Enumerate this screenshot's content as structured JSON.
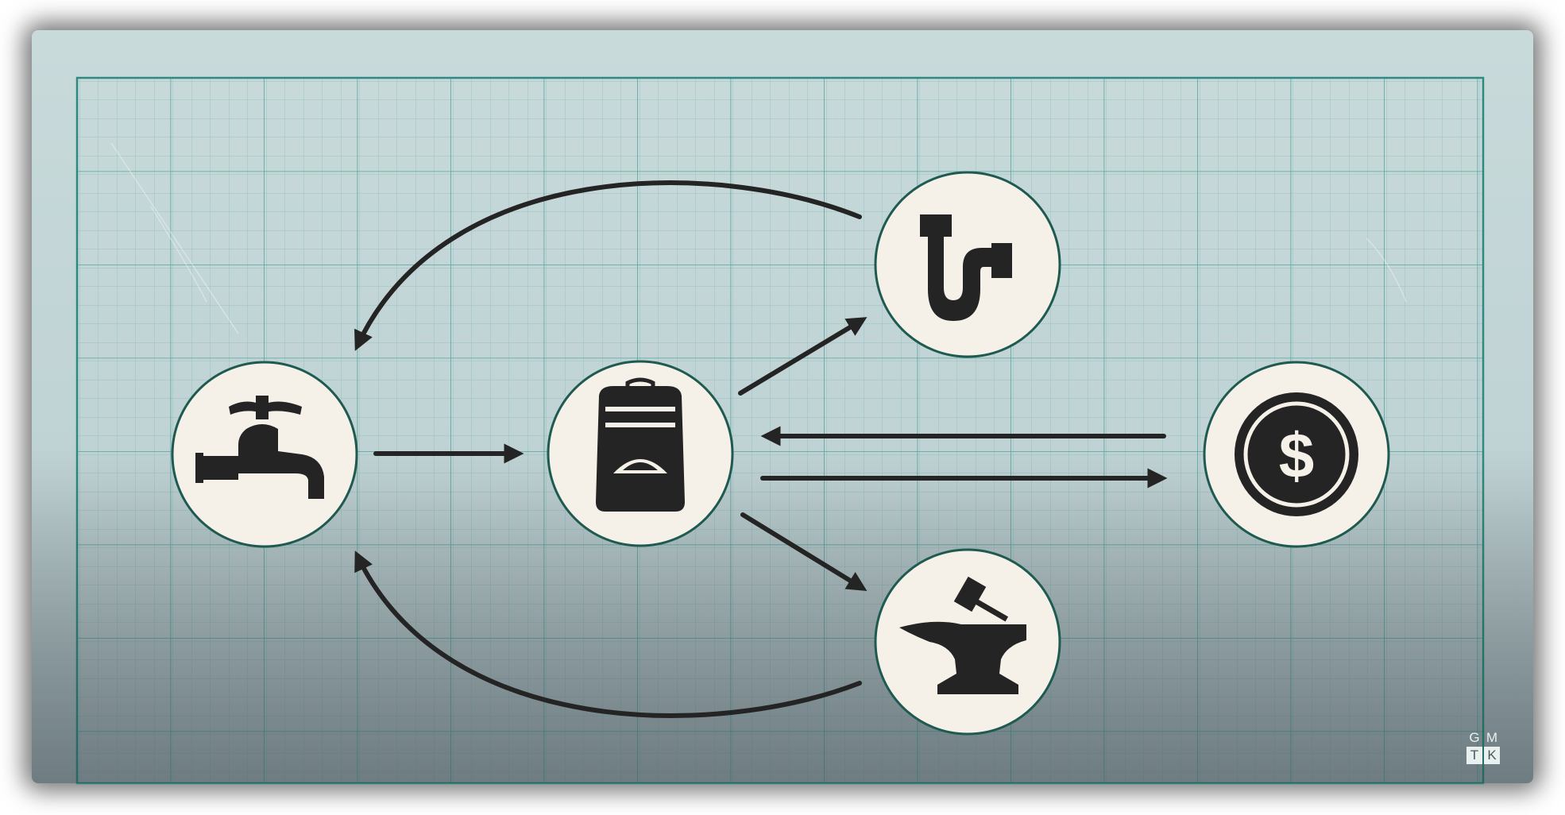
{
  "colors": {
    "background": "#c5d7d7",
    "grid_line": "#3a9a90",
    "node_fill": "#f5f1e9",
    "node_border": "#1f5a50",
    "ink": "#242424",
    "logo": "#e9f1f0"
  },
  "diagram": {
    "nodes": [
      {
        "id": "faucet",
        "icon": "faucet-icon"
      },
      {
        "id": "backpack",
        "icon": "backpack-icon"
      },
      {
        "id": "pipe",
        "icon": "drain-pipe-icon"
      },
      {
        "id": "anvil",
        "icon": "anvil-hammer-icon"
      },
      {
        "id": "coin",
        "icon": "dollar-coin-icon"
      }
    ],
    "edges": [
      {
        "from": "faucet",
        "to": "backpack"
      },
      {
        "from": "backpack",
        "to": "pipe"
      },
      {
        "from": "backpack",
        "to": "anvil"
      },
      {
        "from": "pipe",
        "to": "faucet"
      },
      {
        "from": "anvil",
        "to": "faucet"
      },
      {
        "from": "coin",
        "to": "backpack"
      },
      {
        "from": "backpack",
        "to": "coin"
      }
    ]
  },
  "coin_symbol": "$",
  "logo": {
    "top_row": [
      "G",
      "M"
    ],
    "bottom_row": [
      "T",
      "K"
    ]
  }
}
